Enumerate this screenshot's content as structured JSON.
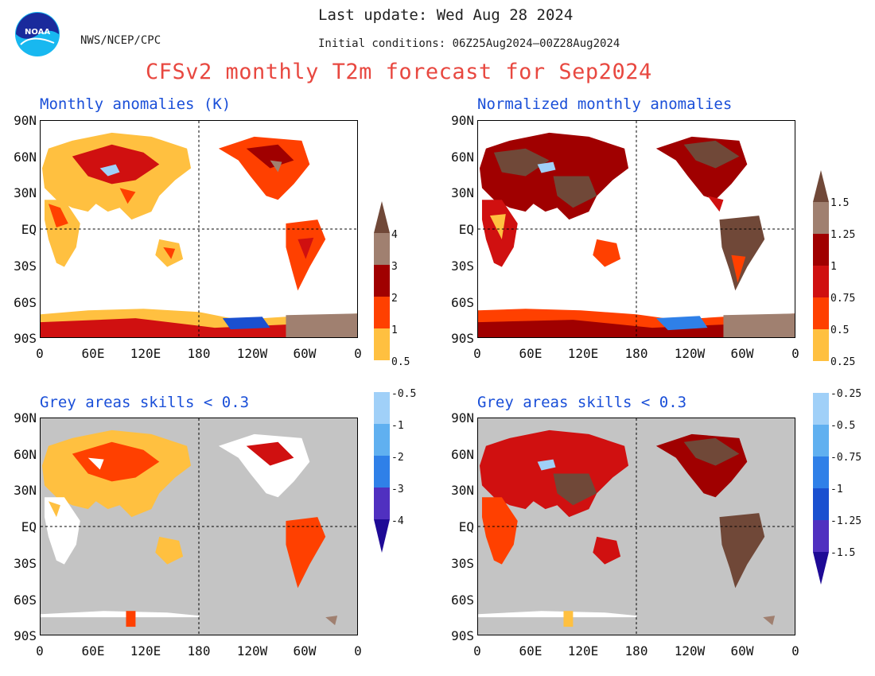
{
  "header": {
    "agency": "NWS/NCEP/CPC",
    "last_update": "Last update: Wed Aug 28 2024",
    "initial_conditions": "Initial conditions: 06Z25Aug2024–00Z28Aug2024",
    "title": "CFSv2 monthly T2m forecast for Sep2024",
    "logo_text": "NOAA"
  },
  "panels": [
    {
      "title": "Monthly anomalies (K)"
    },
    {
      "title": "Normalized monthly anomalies"
    },
    {
      "title": "Grey areas skills < 0.3"
    },
    {
      "title": "Grey areas skills < 0.3"
    }
  ],
  "axes": {
    "lat_labels": [
      "90N",
      "60N",
      "30N",
      "EQ",
      "30S",
      "60S",
      "90S"
    ],
    "lon_labels": [
      "0",
      "60E",
      "120E",
      "180",
      "120W",
      "60W",
      "0"
    ]
  },
  "colorbars": [
    {
      "name": "absolute",
      "upper_labels": [
        "4",
        "3",
        "2",
        "1",
        "0.5"
      ],
      "lower_labels": [
        "-0.5",
        "-1",
        "-2",
        "-3",
        "-4"
      ]
    },
    {
      "name": "normalized",
      "upper_labels": [
        "1.5",
        "1.25",
        "1",
        "0.75",
        "0.5",
        "0.25"
      ],
      "lower_labels": [
        "-0.25",
        "-0.5",
        "-0.75",
        "-1",
        "-1.25",
        "-1.5"
      ]
    }
  ],
  "colors": {
    "warm": [
      "#ffc040",
      "#ff4000",
      "#d01010",
      "#a00000",
      "#a08070",
      "#704838"
    ],
    "cool": [
      "#a0d0f8",
      "#60b0f0",
      "#2f80e8",
      "#1a50d0",
      "#5030c0",
      "#1e0a96"
    ],
    "skill_mask": "#c4c4c4",
    "title_red": "#e84840",
    "panel_title_blue": "#1a4fd8"
  }
}
